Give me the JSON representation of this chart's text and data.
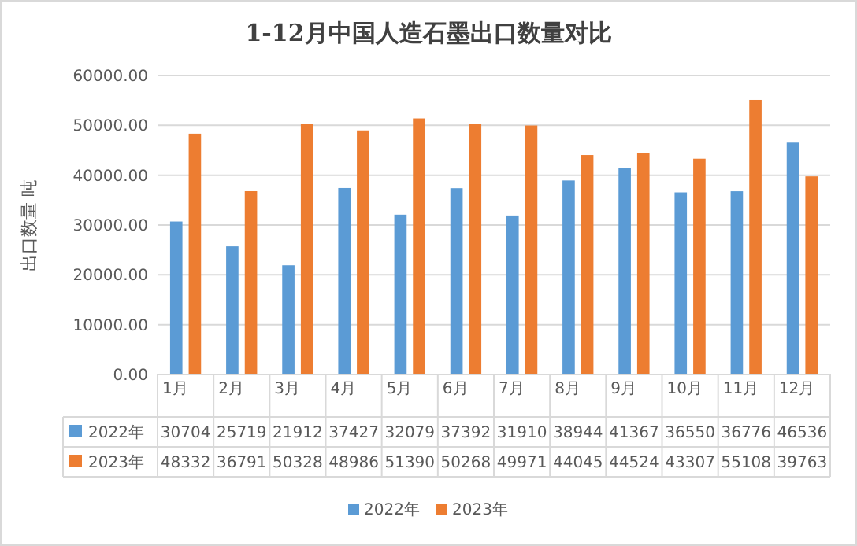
{
  "chart_data": {
    "type": "bar",
    "title": "1-12月中国人造石墨出口数量对比",
    "ylabel": "出口数量 吨",
    "categories": [
      "1月",
      "2月",
      "3月",
      "4月",
      "5月",
      "6月",
      "7月",
      "8月",
      "9月",
      "10月",
      "11月",
      "12月"
    ],
    "series": [
      {
        "name": "2022年",
        "color": "#5b9bd5",
        "values": [
          30704,
          25719,
          21912,
          37427,
          32079,
          37392,
          31910,
          38944,
          41367,
          36550,
          36776,
          46536
        ]
      },
      {
        "name": "2023年",
        "color": "#ed7d31",
        "values": [
          48332,
          36791,
          50328,
          48986,
          51390,
          50268,
          49971,
          44045,
          44524,
          43307,
          55108,
          39763
        ]
      }
    ],
    "ylim": [
      0,
      60000
    ],
    "yticks": [
      {
        "value": 0,
        "label": "0.00"
      },
      {
        "value": 10000,
        "label": "10000.00"
      },
      {
        "value": 20000,
        "label": "20000.00"
      },
      {
        "value": 30000,
        "label": "30000.00"
      },
      {
        "value": 40000,
        "label": "40000.00"
      },
      {
        "value": 50000,
        "label": "50000.00"
      },
      {
        "value": 60000,
        "label": "60000.00"
      }
    ],
    "grid": "y",
    "legend": "bottom",
    "data_labels": true
  }
}
